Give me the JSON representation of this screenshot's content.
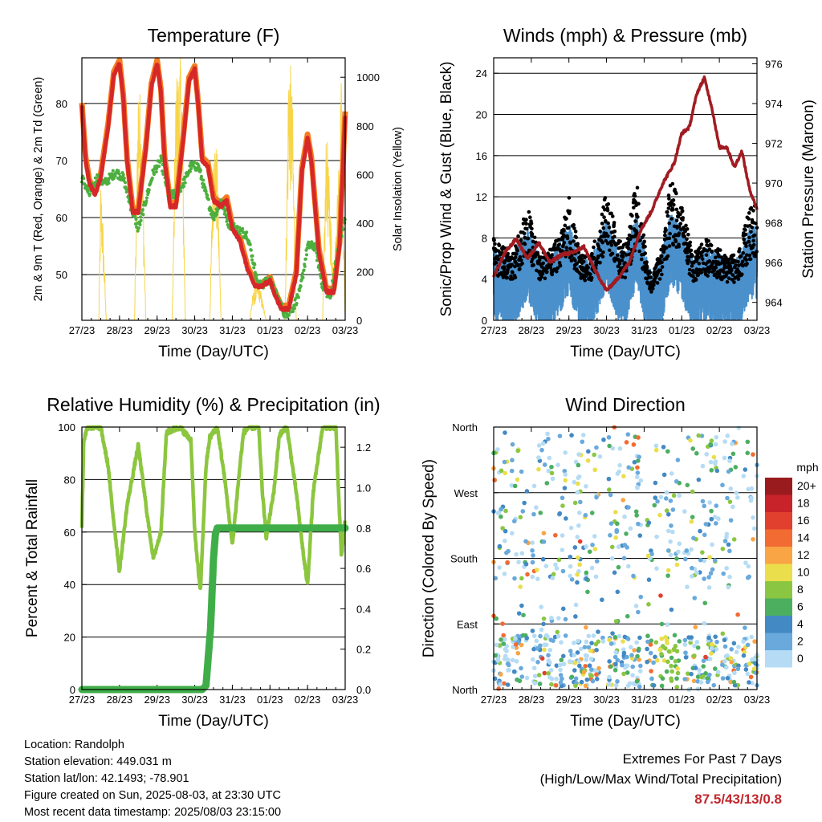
{
  "info": {
    "location": "Location: Randolph",
    "elevation": "Station elevation: 449.031 m",
    "latlon": "Station lat/lon: 42.1493; -78.901",
    "created": "Figure created on Sun, 2025-08-03, at 23:30 UTC",
    "recent": "Most recent data timestamp: 2025/08/03 23:15:00"
  },
  "extremes": {
    "title": "Extremes For Past 7 Days",
    "subtitle": "(High/Low/Max Wind/Total Precipitation)",
    "values": "87.5/43/13/0.8"
  },
  "colors": {
    "temp_2m": "#d62828",
    "temp_9m": "#f57c20",
    "dewpoint": "#4caf3f",
    "solar": "#f7d54a",
    "wind": "#000000",
    "gust": "#4b91cc",
    "pressure": "#a01c22",
    "rh": "#8cc63f",
    "precip": "#3fae49"
  },
  "chart_data": [
    {
      "type": "line",
      "title": "Temperature (F)",
      "xlabel": "Time (Day/UTC)",
      "ylabel": "2m & 9m T (Red, Orange) & 2m Td (Green)",
      "y2label": "Solar Insolation (Yellow)",
      "xticks": [
        "27/23",
        "28/23",
        "29/23",
        "30/23",
        "31/23",
        "01/23",
        "02/23",
        "03/23"
      ],
      "ylim": [
        42,
        88
      ],
      "yticks": [
        50,
        60,
        70,
        80
      ],
      "y2lim": [
        0,
        1080
      ],
      "y2ticks": [
        0,
        200,
        400,
        600,
        800,
        1000
      ],
      "grid": true,
      "series": [
        {
          "key": "temp_2m",
          "x": [
            0,
            0.1,
            0.2,
            0.35,
            0.5,
            0.7,
            0.85,
            1,
            1.1,
            1.2,
            1.35,
            1.5,
            1.7,
            1.85,
            2,
            2.1,
            2.2,
            2.35,
            2.5,
            2.7,
            2.85,
            3,
            3.1,
            3.2,
            3.35,
            3.5,
            3.7,
            3.85,
            4,
            4.2,
            4.4,
            4.6,
            4.8,
            5,
            5.1,
            5.3,
            5.5,
            5.7,
            5.85,
            6,
            6.1,
            6.3,
            6.5,
            6.7,
            6.85,
            7
          ],
          "y": [
            79.5,
            70,
            66,
            64,
            67,
            76,
            85,
            87,
            81,
            70,
            61,
            61,
            72,
            83,
            87,
            82,
            70,
            62,
            62,
            74,
            84,
            86,
            79,
            70,
            69,
            63,
            62,
            63,
            58,
            56,
            51,
            48,
            48,
            49,
            47,
            44,
            44,
            50,
            68,
            74,
            70,
            54,
            47,
            47,
            55,
            78
          ]
        },
        {
          "key": "temp_9m",
          "x": [
            0,
            0.2,
            0.4,
            1.2,
            1.5,
            2.2,
            2.5,
            3.3,
            3.6,
            4.5,
            5.5,
            6.3,
            6.6,
            7
          ],
          "y": [
            78,
            67,
            64,
            70,
            62,
            71,
            63,
            71,
            63,
            49,
            44,
            55,
            48,
            76
          ]
        },
        {
          "key": "dewpoint",
          "x": [
            0,
            0.2,
            0.4,
            0.6,
            0.9,
            1.1,
            1.3,
            1.5,
            1.7,
            1.9,
            2.1,
            2.3,
            2.5,
            2.7,
            2.9,
            3.1,
            3.3,
            3.5,
            3.7,
            3.9,
            4.1,
            4.4,
            4.7,
            5,
            5.2,
            5.4,
            5.6,
            5.8,
            6,
            6.2,
            6.4,
            6.6,
            6.8,
            7
          ],
          "y": [
            67,
            64,
            67,
            66,
            68,
            67,
            62,
            58,
            63,
            68,
            70,
            64,
            64,
            66,
            69,
            69,
            64,
            60,
            63,
            59,
            58,
            57,
            48,
            49,
            46,
            43,
            44,
            47,
            55,
            55,
            48,
            46,
            54,
            60
          ]
        },
        {
          "key": "solar",
          "x": [
            0,
            0.45,
            0.5,
            0.55,
            0.65,
            1.4,
            1.5,
            1.6,
            1.7,
            2.4,
            2.5,
            2.65,
            2.75,
            3.4,
            3.5,
            3.6,
            3.7,
            4.45,
            4.55,
            4.7,
            4.9,
            5.4,
            5.5,
            5.6,
            5.7,
            6.4,
            6.5,
            6.7,
            6.9,
            7
          ],
          "y": [
            0,
            0,
            520,
            400,
            0,
            0,
            930,
            700,
            0,
            0,
            880,
            990,
            0,
            0,
            720,
            600,
            0,
            0,
            100,
            150,
            0,
            0,
            1030,
            800,
            0,
            0,
            720,
            150,
            900,
            0
          ]
        }
      ]
    },
    {
      "type": "scatter",
      "title": "Winds (mph) & Pressure (mb)",
      "xlabel": "Time (Day/UTC)",
      "ylabel": "Sonic/Prop Wind & Gust (Blue, Black)",
      "y2label": "Station Pressure (Maroon)",
      "xticks": [
        "27/23",
        "28/23",
        "29/23",
        "30/23",
        "31/23",
        "01/23",
        "02/23",
        "03/23"
      ],
      "ylim": [
        0,
        25.5
      ],
      "yticks": [
        0,
        4,
        8,
        12,
        16,
        20,
        24
      ],
      "y2lim": [
        963.1,
        976.3
      ],
      "y2ticks": [
        964,
        966,
        968,
        970,
        972,
        974,
        976
      ],
      "grid": true,
      "pressure": {
        "x": [
          0,
          0.3,
          0.6,
          0.9,
          1.2,
          1.5,
          1.8,
          2.1,
          2.4,
          2.7,
          3,
          3.3,
          3.6,
          3.9,
          4.2,
          4.5,
          4.8,
          5,
          5.2,
          5.4,
          5.6,
          5.8,
          6,
          6.2,
          6.4,
          6.6,
          6.8,
          7
        ],
        "y": [
          965.3,
          966.5,
          967.2,
          966.2,
          967,
          966,
          966.4,
          966.5,
          966.8,
          965.6,
          964.6,
          965.2,
          966,
          967.6,
          968.6,
          970,
          971,
          972.5,
          972.8,
          974.5,
          975.3,
          973.8,
          971.8,
          971.8,
          970.8,
          971.6,
          969.7,
          968.7
        ]
      }
    },
    {
      "type": "line",
      "title": "Relative Humidity (%) & Precipitation (in)",
      "xlabel": "Time (Day/UTC)",
      "ylabel": "Percent & Total Rainfall",
      "xticks": [
        "27/23",
        "28/23",
        "29/23",
        "30/23",
        "31/23",
        "01/23",
        "02/23",
        "03/23"
      ],
      "ylim": [
        0,
        100
      ],
      "yticks": [
        0,
        20,
        40,
        60,
        80,
        100
      ],
      "y2lim": [
        0,
        1.3
      ],
      "y2ticks": [
        0.0,
        0.2,
        0.4,
        0.6,
        0.8,
        1.0,
        1.2
      ],
      "grid": true,
      "series": [
        {
          "key": "rh",
          "x": [
            0,
            0.05,
            0.15,
            0.5,
            0.7,
            0.8,
            1,
            1.2,
            1.5,
            1.75,
            1.9,
            2.1,
            2.25,
            2.6,
            2.9,
            3,
            3.15,
            3.3,
            3.4,
            3.6,
            3.8,
            4,
            4.2,
            4.3,
            4.45,
            4.7,
            4.8,
            4.9,
            5.1,
            5.25,
            5.45,
            5.7,
            5.9,
            6,
            6.15,
            6.4,
            6.75,
            6.9,
            7
          ],
          "y": [
            62,
            95,
            100,
            100,
            85,
            70,
            45,
            70,
            93,
            65,
            50,
            60,
            98,
            100,
            95,
            60,
            37,
            85,
            96,
            100,
            80,
            55,
            85,
            98,
            100,
            100,
            75,
            58,
            75,
            97,
            100,
            75,
            50,
            40,
            75,
            100,
            100,
            50,
            65
          ]
        },
        {
          "key": "precip",
          "x": [
            0,
            3.2,
            3.3,
            3.42,
            3.5,
            3.55,
            3.6,
            4.5,
            5.5,
            6.5,
            7
          ],
          "y": [
            0,
            0,
            0.02,
            0.3,
            0.65,
            0.77,
            0.8,
            0.8,
            0.8,
            0.8,
            0.8
          ]
        }
      ]
    },
    {
      "type": "scatter",
      "title": "Wind Direction",
      "xlabel": "Time (Day/UTC)",
      "ylabel": "Direction (Colored By Speed)",
      "xticks": [
        "27/23",
        "28/23",
        "29/23",
        "30/23",
        "31/23",
        "01/23",
        "02/23",
        "03/23"
      ],
      "yticks": [
        "North",
        "West",
        "South",
        "East",
        "North"
      ],
      "ylim": [
        360,
        0
      ],
      "grid": true,
      "colorbar": {
        "title": "mph",
        "labels": [
          "20+",
          "18",
          "16",
          "14",
          "12",
          "10",
          "8",
          "6",
          "4",
          "2",
          "0"
        ],
        "colors": [
          "#9a1b1e",
          "#c8232a",
          "#e0402d",
          "#f26b32",
          "#f9a445",
          "#eade4c",
          "#8bc643",
          "#4caf60",
          "#4389c4",
          "#69a9dc",
          "#b5dcf4"
        ]
      }
    }
  ]
}
